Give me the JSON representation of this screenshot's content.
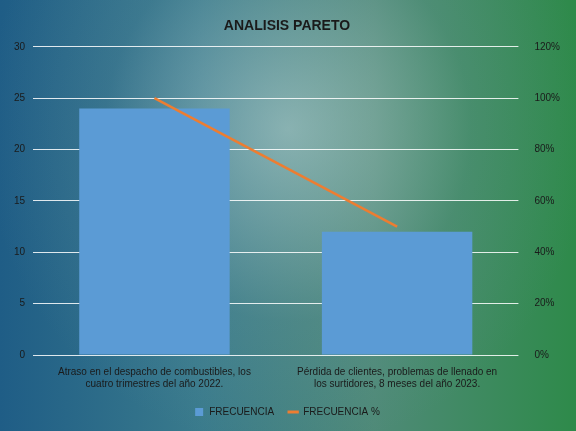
{
  "chart_data": {
    "type": "bar",
    "title": "ANALISIS PARETO",
    "categories": [
      "Atraso en el despacho de combustibles, los cuatro trimestres del año 2022.",
      "Pérdida de clientes, problemas de llenado en los surtidores, 8 meses del año 2023."
    ],
    "series": [
      {
        "name": "FRECUENCIA",
        "type": "bar",
        "color": "#5b9bd5",
        "values": [
          24,
          12
        ]
      },
      {
        "name": "FRECUENCIA %",
        "type": "line",
        "color": "#ed7d31",
        "axis": "y2",
        "marker": "none",
        "values": [
          100,
          50
        ]
      }
    ],
    "ylim": [
      0,
      30
    ],
    "yticks": [
      0,
      5,
      10,
      15,
      20,
      25,
      30
    ],
    "y2lim": [
      0,
      120
    ],
    "y2ticks": [
      {
        "value": 0,
        "label": "0%"
      },
      {
        "value": 20,
        "label": "20%"
      },
      {
        "value": 40,
        "label": "40%"
      },
      {
        "value": 60,
        "label": "60%"
      },
      {
        "value": 80,
        "label": "80%"
      },
      {
        "value": 100,
        "label": "100%"
      },
      {
        "value": 120,
        "label": "120%"
      }
    ],
    "grid": true,
    "legend": "bottom"
  }
}
